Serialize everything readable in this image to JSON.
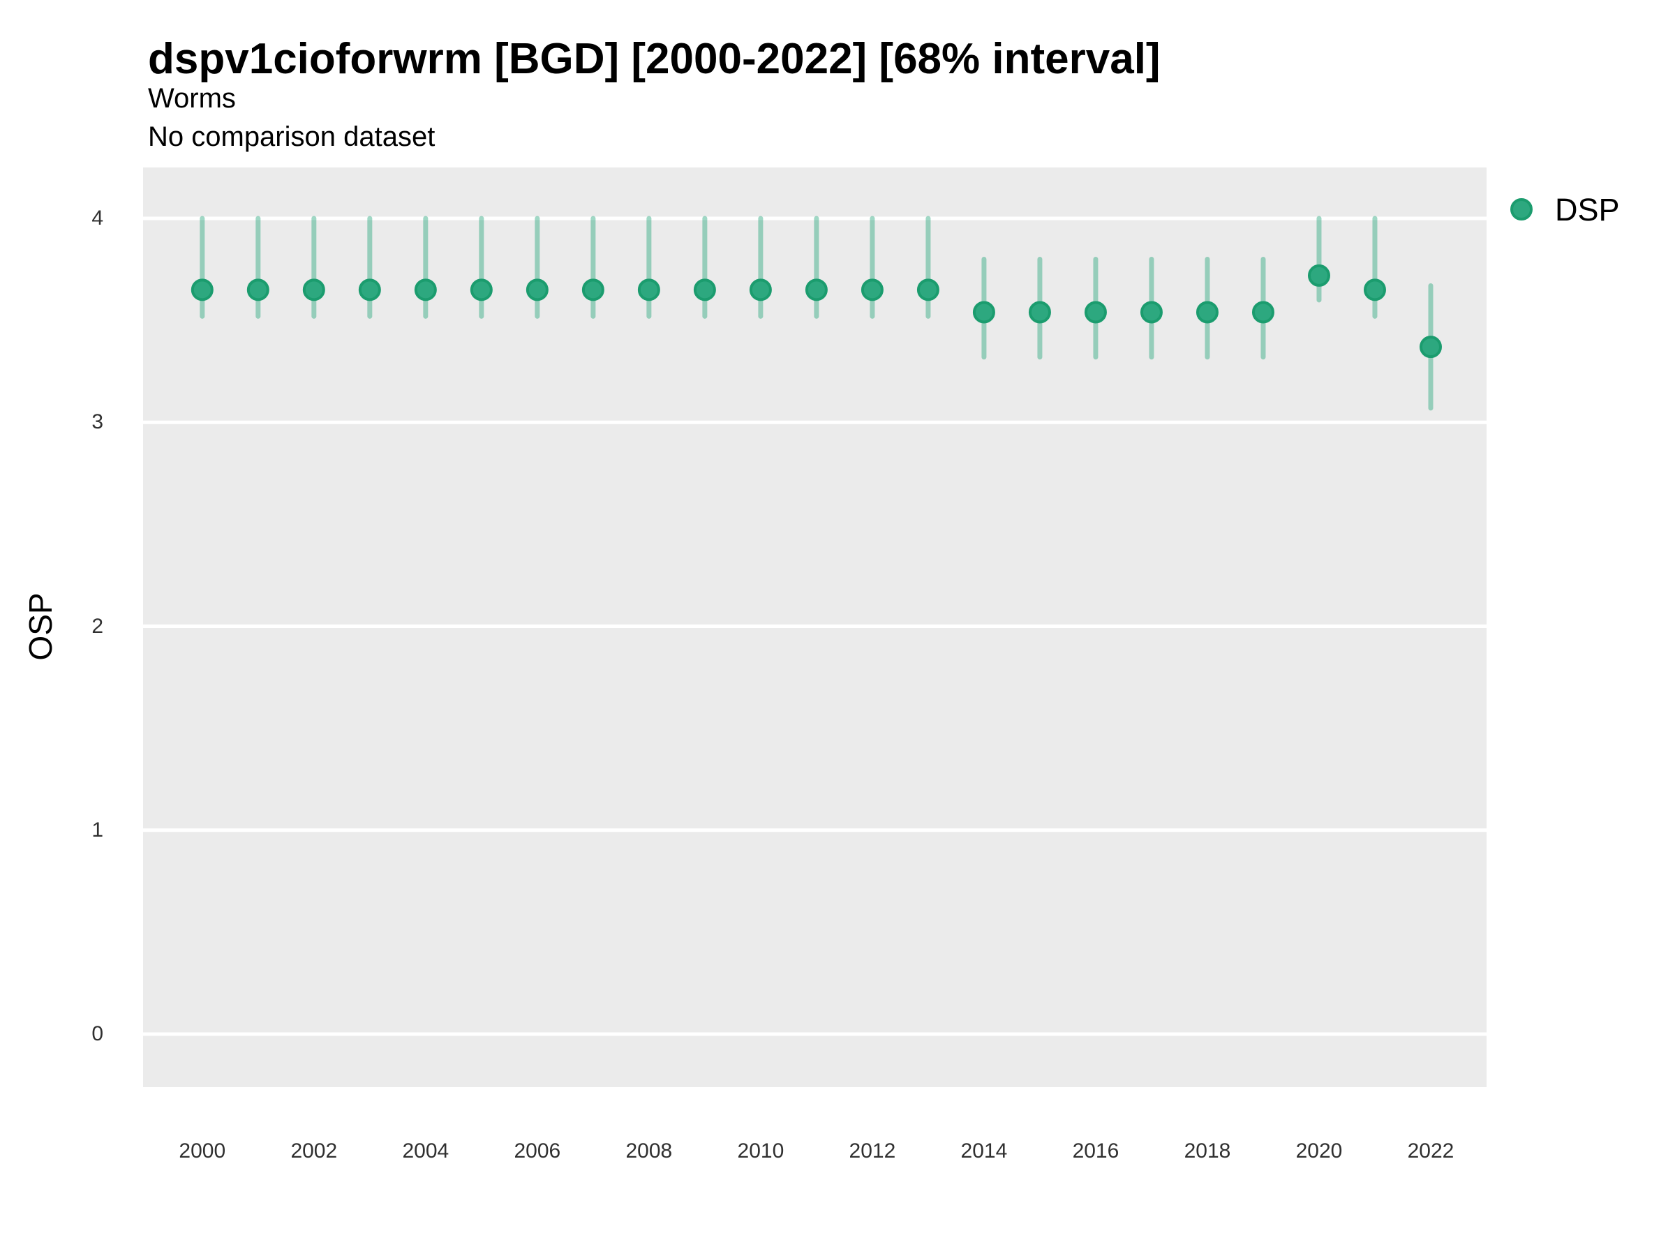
{
  "chart_data": {
    "type": "scatter",
    "title": "dspv1cioforwrm [BGD] [2000-2022] [68% interval]",
    "subtitle": "Worms",
    "note": "No comparison dataset",
    "xlabel": "",
    "ylabel": "OSP",
    "interval_width": "68%",
    "legend_position": "right",
    "grid": "horizontal-major-only",
    "x_ticks": [
      2000,
      2002,
      2004,
      2006,
      2008,
      2010,
      2012,
      2014,
      2016,
      2018,
      2020,
      2022
    ],
    "y_ticks": [
      0,
      1,
      2,
      3,
      4
    ],
    "xlim": [
      1998.94,
      2023.0
    ],
    "ylim": [
      -0.26,
      4.25
    ],
    "series": [
      {
        "name": "DSP",
        "points": [
          {
            "year": 2000,
            "value": 3.65,
            "lo": 3.52,
            "hi": 4.0
          },
          {
            "year": 2001,
            "value": 3.65,
            "lo": 3.52,
            "hi": 4.0
          },
          {
            "year": 2002,
            "value": 3.65,
            "lo": 3.52,
            "hi": 4.0
          },
          {
            "year": 2003,
            "value": 3.65,
            "lo": 3.52,
            "hi": 4.0
          },
          {
            "year": 2004,
            "value": 3.65,
            "lo": 3.52,
            "hi": 4.0
          },
          {
            "year": 2005,
            "value": 3.65,
            "lo": 3.52,
            "hi": 4.0
          },
          {
            "year": 2006,
            "value": 3.65,
            "lo": 3.52,
            "hi": 4.0
          },
          {
            "year": 2007,
            "value": 3.65,
            "lo": 3.52,
            "hi": 4.0
          },
          {
            "year": 2008,
            "value": 3.65,
            "lo": 3.52,
            "hi": 4.0
          },
          {
            "year": 2009,
            "value": 3.65,
            "lo": 3.52,
            "hi": 4.0
          },
          {
            "year": 2010,
            "value": 3.65,
            "lo": 3.52,
            "hi": 4.0
          },
          {
            "year": 2011,
            "value": 3.65,
            "lo": 3.52,
            "hi": 4.0
          },
          {
            "year": 2012,
            "value": 3.65,
            "lo": 3.52,
            "hi": 4.0
          },
          {
            "year": 2013,
            "value": 3.65,
            "lo": 3.52,
            "hi": 4.0
          },
          {
            "year": 2014,
            "value": 3.54,
            "lo": 3.32,
            "hi": 3.8
          },
          {
            "year": 2015,
            "value": 3.54,
            "lo": 3.32,
            "hi": 3.8
          },
          {
            "year": 2016,
            "value": 3.54,
            "lo": 3.32,
            "hi": 3.8
          },
          {
            "year": 2017,
            "value": 3.54,
            "lo": 3.32,
            "hi": 3.8
          },
          {
            "year": 2018,
            "value": 3.54,
            "lo": 3.32,
            "hi": 3.8
          },
          {
            "year": 2019,
            "value": 3.54,
            "lo": 3.32,
            "hi": 3.8
          },
          {
            "year": 2020,
            "value": 3.72,
            "lo": 3.6,
            "hi": 4.0
          },
          {
            "year": 2021,
            "value": 3.65,
            "lo": 3.52,
            "hi": 4.0
          },
          {
            "year": 2022,
            "value": 3.37,
            "lo": 3.07,
            "hi": 3.67
          }
        ]
      }
    ],
    "colors": {
      "point_fill": "#2DA87F",
      "point_stroke": "#1B9C6E",
      "interval_stroke": "#2DA87F",
      "interval_opacity": 0.45,
      "panel_bg": "#EBEBEB",
      "grid": "#FFFFFF",
      "tick_text": "#303030",
      "title_text": "#000000"
    }
  }
}
